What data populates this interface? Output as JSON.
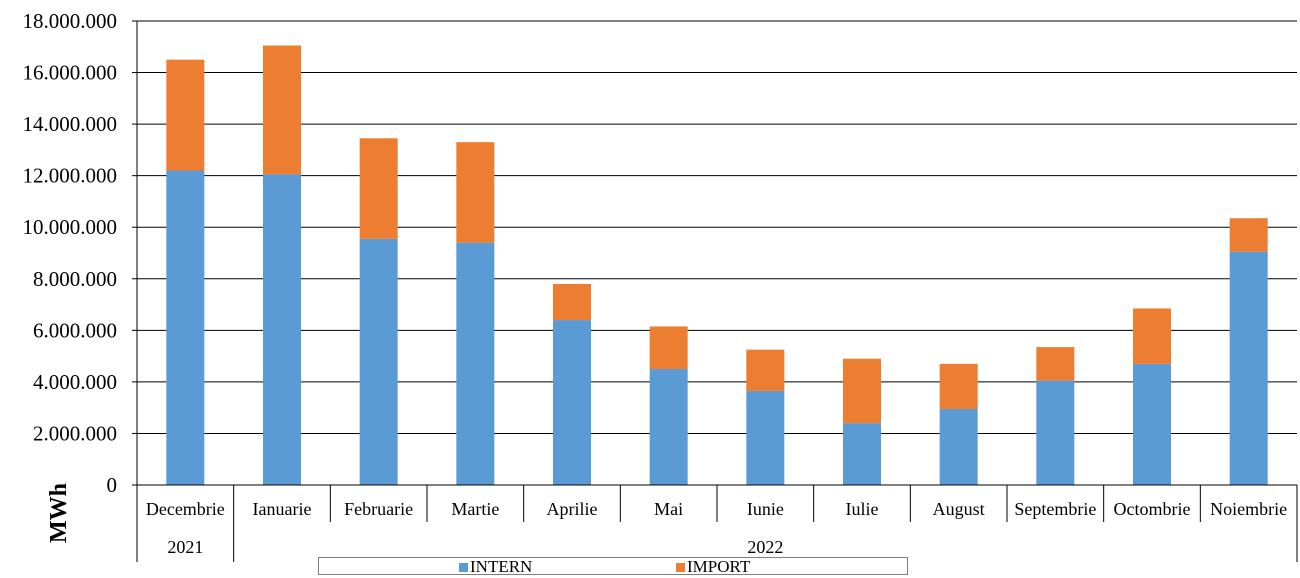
{
  "chart_data": {
    "type": "bar",
    "stacked": true,
    "categories": [
      "Decembrie",
      "Ianuarie",
      "Februarie",
      "Martie",
      "Aprilie",
      "Mai",
      "Iunie",
      "Iulie",
      "August",
      "Septembrie",
      "Octombrie",
      "Noiembrie"
    ],
    "year_groups": [
      {
        "label": "2021",
        "span": 1
      },
      {
        "label": "2022",
        "span": 11
      }
    ],
    "series": [
      {
        "name": "INTERN",
        "color": "#5b9bd5",
        "values": [
          12200000,
          12050000,
          9550000,
          9400000,
          6400000,
          4500000,
          3650000,
          2400000,
          2950000,
          4050000,
          4700000,
          9050000
        ]
      },
      {
        "name": "IMPORT",
        "color": "#ed7d31",
        "values": [
          4300000,
          5000000,
          3900000,
          3900000,
          1400000,
          1650000,
          1600000,
          2500000,
          1750000,
          1300000,
          2150000,
          1300000
        ]
      }
    ],
    "ylabel": "MWh",
    "ylim": [
      0,
      18000000
    ],
    "yticks": [
      "0",
      "2.000.000",
      "4.000.000",
      "6.000.000",
      "8.000.000",
      "10.000.000",
      "12.000.000",
      "14.000.000",
      "16.000.000",
      "18.000.000"
    ],
    "grid": true,
    "legend_position": "bottom"
  }
}
